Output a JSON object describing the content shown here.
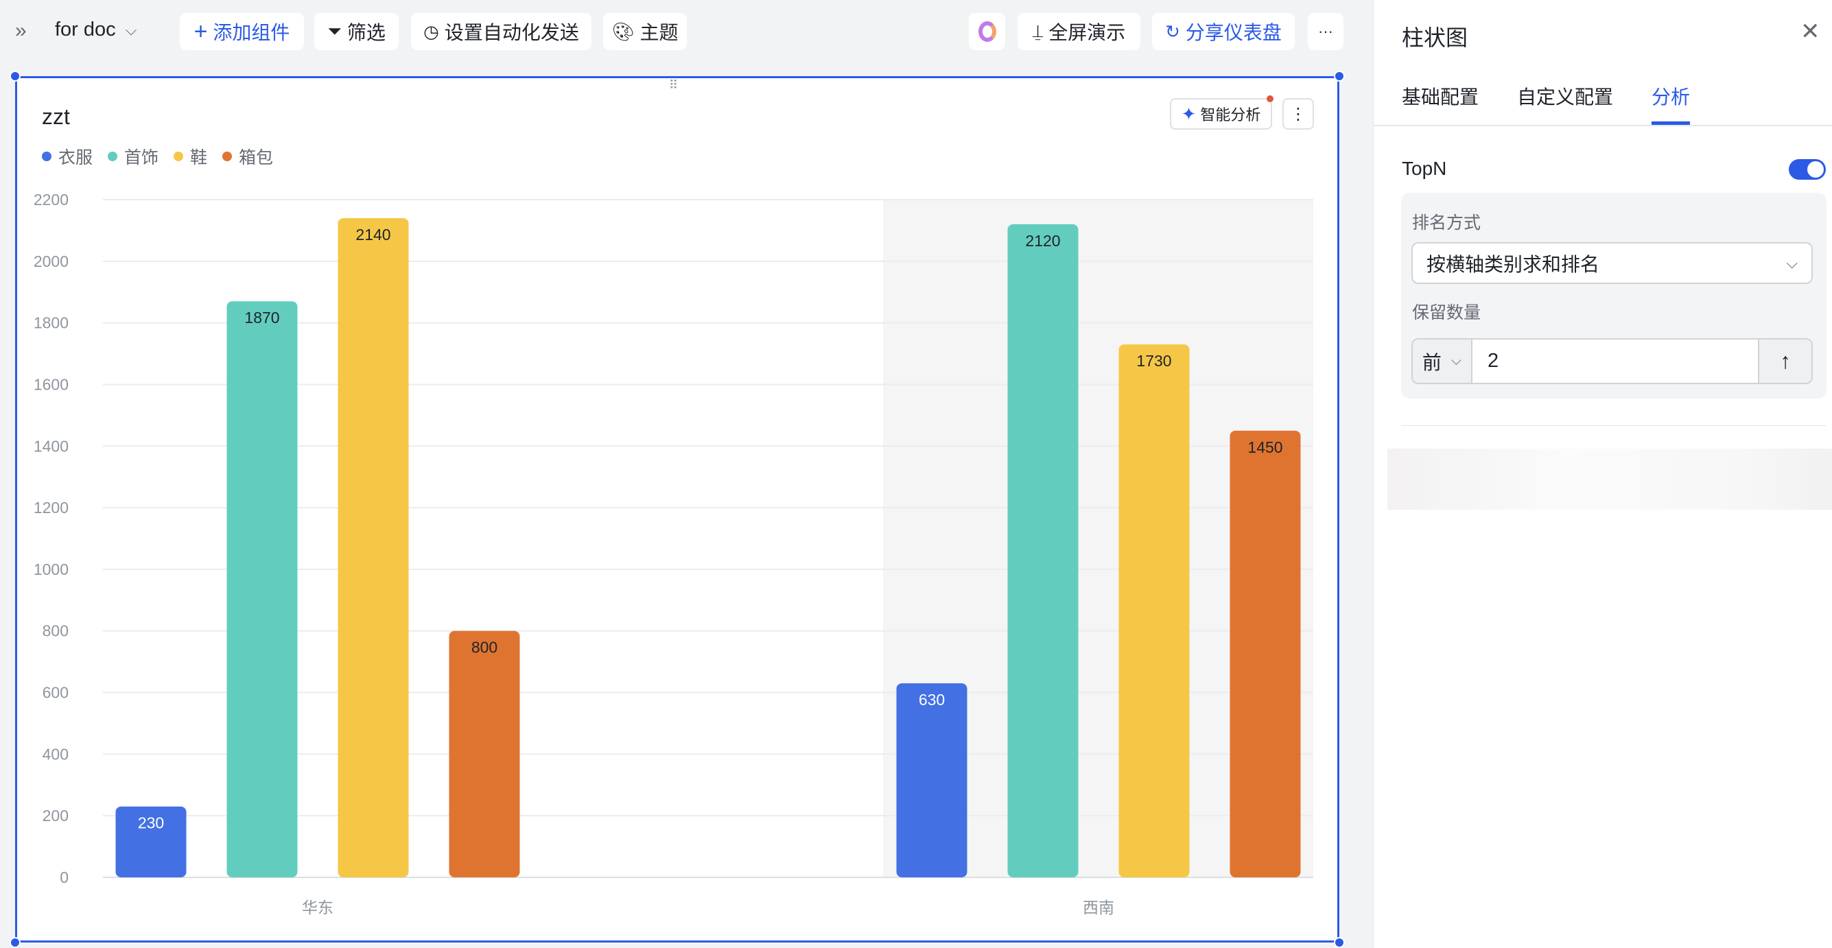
{
  "toolbar": {
    "dashboard_name": "for doc",
    "add_component": "添加组件",
    "filter": "筛选",
    "auto_send": "设置自动化发送",
    "theme": "主题",
    "fullscreen": "全屏演示",
    "share": "分享仪表盘",
    "more": "···"
  },
  "card": {
    "title": "zzt",
    "ai_analysis": "智能分析",
    "more": "⋮"
  },
  "chart_data": {
    "type": "bar",
    "title": "zzt",
    "categories": [
      "华东",
      "西南"
    ],
    "series": [
      {
        "name": "衣服",
        "color": "#4370e3",
        "values": [
          230,
          630
        ]
      },
      {
        "name": "首饰",
        "color": "#62cdbe",
        "values": [
          1870,
          2120
        ]
      },
      {
        "name": "鞋",
        "color": "#f6c746",
        "values": [
          2140,
          1730
        ]
      },
      {
        "name": "箱包",
        "color": "#df7431",
        "values": [
          800,
          1450
        ]
      }
    ],
    "ylim": [
      0,
      2200
    ],
    "yticks": [
      0,
      200,
      400,
      600,
      800,
      1000,
      1200,
      1400,
      1600,
      1800,
      2000,
      2200
    ],
    "grid": true,
    "legend": "top-left",
    "highlighted_category": "西南"
  },
  "panel": {
    "title": "柱状图",
    "tabs": [
      {
        "label": "基础配置"
      },
      {
        "label": "自定义配置"
      },
      {
        "label": "分析",
        "active": true
      }
    ],
    "topn_label": "TopN",
    "topn_enabled": true,
    "rank_method_label": "排名方式",
    "rank_method_value": "按横轴类别求和排名",
    "keep_count_label": "保留数量",
    "keep_direction": "前",
    "keep_count_value": "2",
    "sort_icon": "↑"
  },
  "colors": {
    "accent": "#2a5ae6"
  }
}
